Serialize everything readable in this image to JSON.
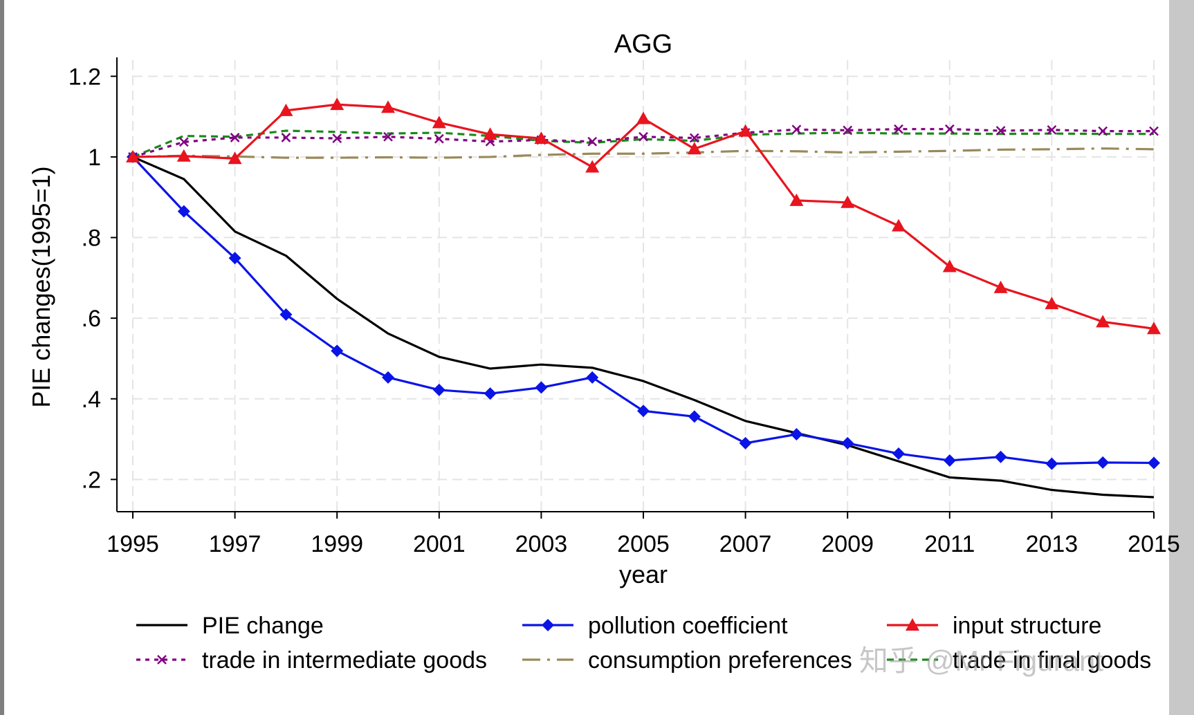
{
  "chart_data": {
    "type": "line",
    "title": "AGG",
    "xlabel": "year",
    "ylabel": "PIE changes(1995=1)",
    "xlim": [
      1995,
      2015
    ],
    "ylim": [
      0.12,
      1.24
    ],
    "x_ticks": [
      1995,
      1997,
      1999,
      2001,
      2003,
      2005,
      2007,
      2009,
      2011,
      2013,
      2015
    ],
    "x_tick_labels": [
      "1995",
      "1997",
      "1999",
      "2001",
      "2003",
      "2005",
      "2007",
      "2009",
      "2011",
      "2013",
      "2015"
    ],
    "y_ticks": [
      0.2,
      0.4,
      0.6,
      0.8,
      1.0,
      1.2
    ],
    "y_tick_labels": [
      ".2",
      ".4",
      ".6",
      ".8",
      "1",
      "1.2"
    ],
    "grid": true,
    "legend_position": "bottom",
    "x": [
      1995,
      1996,
      1997,
      1998,
      1999,
      2000,
      2001,
      2002,
      2003,
      2004,
      2005,
      2006,
      2007,
      2008,
      2009,
      2010,
      2011,
      2012,
      2013,
      2014,
      2015
    ],
    "series": [
      {
        "name": "PIE change",
        "color": "#000000",
        "marker": "none",
        "dash": "solid",
        "values": [
          1.0,
          0.945,
          0.815,
          0.755,
          0.648,
          0.562,
          0.504,
          0.475,
          0.485,
          0.477,
          0.444,
          0.397,
          0.345,
          0.315,
          0.285,
          0.245,
          0.205,
          0.197,
          0.174,
          0.162,
          0.156
        ]
      },
      {
        "name": "pollution coefficient",
        "color": "#0a14e6",
        "marker": "diamond",
        "dash": "solid",
        "values": [
          1.0,
          0.865,
          0.749,
          0.609,
          0.519,
          0.453,
          0.422,
          0.413,
          0.428,
          0.453,
          0.37,
          0.356,
          0.29,
          0.312,
          0.29,
          0.264,
          0.247,
          0.256,
          0.239,
          0.242,
          0.241
        ]
      },
      {
        "name": "input structure",
        "color": "#e8141e",
        "marker": "triangle",
        "dash": "solid",
        "values": [
          1.0,
          1.002,
          0.996,
          1.115,
          1.13,
          1.123,
          1.085,
          1.056,
          1.046,
          0.975,
          1.095,
          1.02,
          1.064,
          0.892,
          0.887,
          0.829,
          0.728,
          0.676,
          0.636,
          0.591,
          0.574
        ]
      },
      {
        "name": "trade in intermediate goods",
        "color": "#800080",
        "marker": "x",
        "dash": "dot",
        "values": [
          1.0,
          1.037,
          1.048,
          1.048,
          1.046,
          1.05,
          1.045,
          1.038,
          1.042,
          1.038,
          1.05,
          1.047,
          1.06,
          1.068,
          1.066,
          1.069,
          1.069,
          1.065,
          1.067,
          1.064,
          1.064
        ]
      },
      {
        "name": "consumption preferences",
        "color": "#9a8a5a",
        "marker": "none",
        "dash": "longdashdot",
        "values": [
          1.0,
          1.003,
          1.001,
          0.998,
          0.998,
          0.999,
          0.998,
          1.0,
          1.005,
          1.008,
          1.008,
          1.011,
          1.015,
          1.014,
          1.011,
          1.013,
          1.015,
          1.018,
          1.019,
          1.021,
          1.019
        ]
      },
      {
        "name": "trade in final goods",
        "color": "#1a8a1a",
        "marker": "none",
        "dash": "shortdash",
        "values": [
          1.0,
          1.052,
          1.05,
          1.065,
          1.062,
          1.058,
          1.06,
          1.052,
          1.04,
          1.035,
          1.044,
          1.04,
          1.055,
          1.058,
          1.06,
          1.058,
          1.058,
          1.057,
          1.058,
          1.057,
          1.057
        ]
      }
    ]
  },
  "watermark": "知乎 @Mr Figurant"
}
